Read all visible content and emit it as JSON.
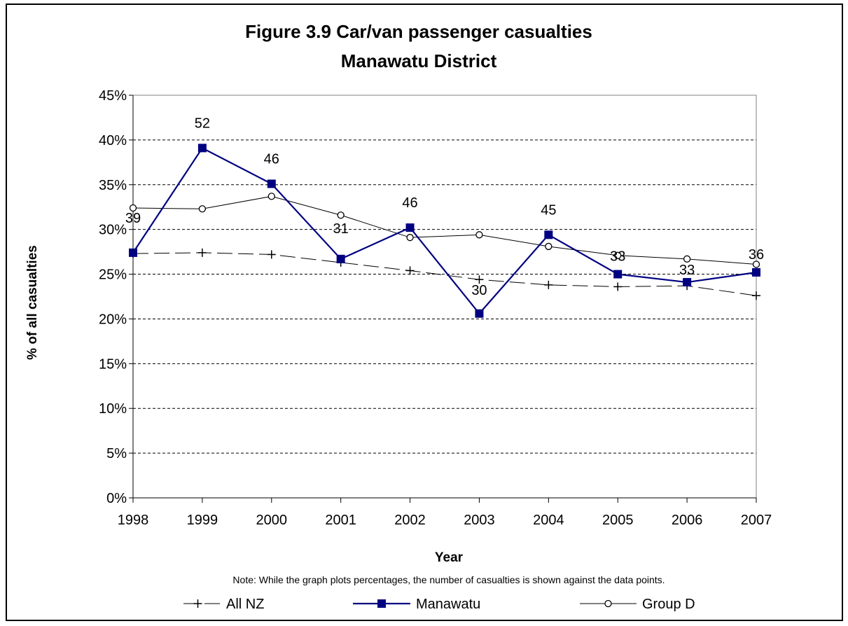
{
  "chart_data": {
    "type": "line",
    "title": "Figure 3.9 Car/van passenger casualties",
    "subtitle": "Manawatu District",
    "xlabel": "Year",
    "ylabel": "% of all casualties",
    "note": "Note: While the graph plots percentages, the number of casualties is shown against the data points.",
    "categories": [
      "1998",
      "1999",
      "2000",
      "2001",
      "2002",
      "2003",
      "2004",
      "2005",
      "2006",
      "2007"
    ],
    "ylim": [
      0,
      0.45
    ],
    "yticks": [
      {
        "value": 0,
        "label": "0%"
      },
      {
        "value": 0.05,
        "label": "5%"
      },
      {
        "value": 0.1,
        "label": "10%"
      },
      {
        "value": 0.15,
        "label": "15%"
      },
      {
        "value": 0.2,
        "label": "20%"
      },
      {
        "value": 0.25,
        "label": "25%"
      },
      {
        "value": 0.3,
        "label": "30%"
      },
      {
        "value": 0.35,
        "label": "35%"
      },
      {
        "value": 0.4,
        "label": "40%"
      },
      {
        "value": 0.45,
        "label": "45%"
      }
    ],
    "grid": "horizontal-dashed",
    "legend_position": "bottom",
    "series": [
      {
        "name": "All NZ",
        "color": "#000000",
        "line_style": "dashed",
        "marker": "plus",
        "values": [
          0.273,
          0.274,
          0.272,
          0.263,
          0.254,
          0.244,
          0.238,
          0.236,
          0.237,
          0.226
        ]
      },
      {
        "name": "Manawatu",
        "color": "#000080",
        "line_style": "solid",
        "marker": "square",
        "values": [
          0.274,
          0.391,
          0.351,
          0.267,
          0.302,
          0.206,
          0.294,
          0.25,
          0.241,
          0.252
        ],
        "data_labels": [
          "39",
          "52",
          "46",
          "31",
          "46",
          "30",
          "45",
          "33",
          "33",
          "36"
        ]
      },
      {
        "name": "Group D",
        "color": "#000000",
        "line_style": "solid",
        "marker": "circle",
        "values": [
          0.324,
          0.323,
          0.337,
          0.316,
          0.291,
          0.294,
          0.281,
          0.271,
          0.267,
          0.261
        ]
      }
    ]
  }
}
